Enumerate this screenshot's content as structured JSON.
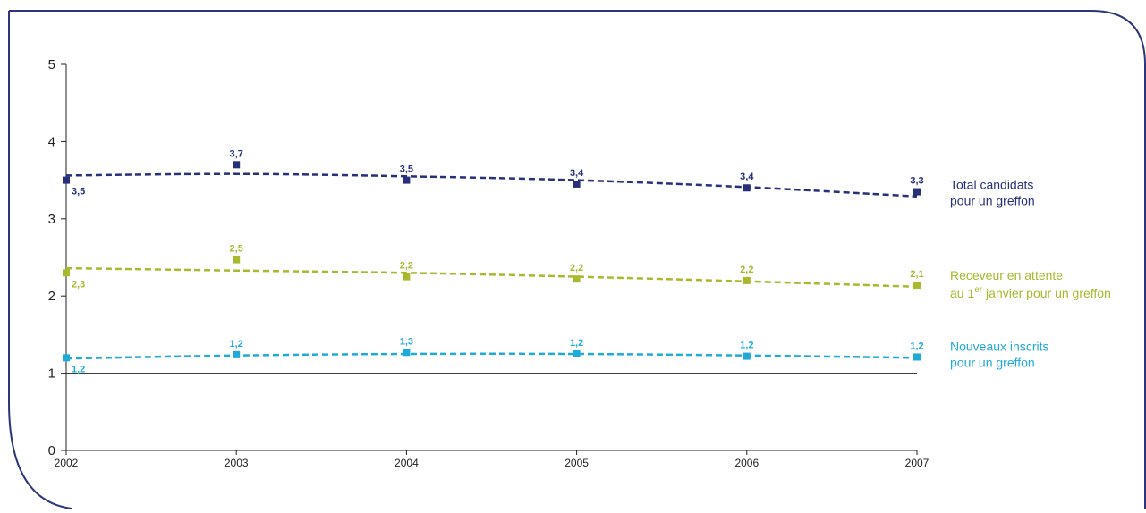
{
  "chart_data": {
    "type": "line",
    "x": [
      "2002",
      "2003",
      "2004",
      "2005",
      "2006",
      "2007"
    ],
    "ylim": [
      0,
      5
    ],
    "yticks": [
      "0",
      "1",
      "2",
      "3",
      "4",
      "5"
    ],
    "reference_line": 1,
    "grid": false,
    "legend_placement": "right",
    "series": [
      {
        "name_lines": [
          "Total candidats",
          "pour un greffon"
        ],
        "color": "#27307a",
        "values": [
          3.5,
          3.7,
          3.5,
          3.45,
          3.4,
          3.35
        ],
        "labels": [
          "3,5",
          "3,7",
          "3,5",
          "3,4",
          "3,4",
          "3,3"
        ],
        "trend": [
          3.56,
          3.58,
          3.55,
          3.5,
          3.41,
          3.29
        ]
      },
      {
        "name_lines": [
          "Receveur en attente",
          "au 1",
          "er",
          " janvier pour un greffon"
        ],
        "color": "#a9b82d",
        "values": [
          2.3,
          2.47,
          2.25,
          2.22,
          2.2,
          2.14
        ],
        "labels": [
          "2,3",
          "2,5",
          "2,2",
          "2,2",
          "2,2",
          "2,1"
        ],
        "trend": [
          2.36,
          2.33,
          2.3,
          2.25,
          2.19,
          2.12
        ]
      },
      {
        "name_lines": [
          "Nouveaux inscrits",
          "pour un greffon"
        ],
        "color": "#1faad9",
        "values": [
          1.2,
          1.24,
          1.27,
          1.25,
          1.22,
          1.21
        ],
        "labels": [
          "1,2",
          "1,2",
          "1,3",
          "1,2",
          "1,2",
          "1,2"
        ],
        "trend": [
          1.19,
          1.23,
          1.25,
          1.25,
          1.23,
          1.2
        ]
      }
    ]
  }
}
